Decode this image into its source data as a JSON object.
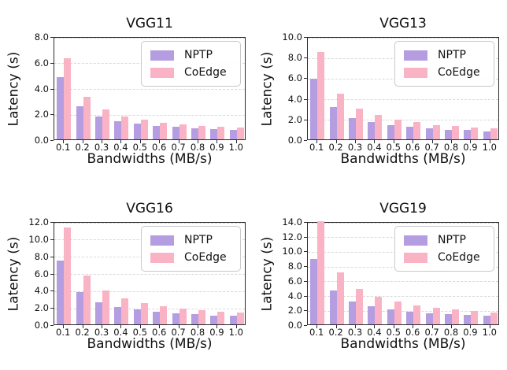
{
  "figure": {
    "background": "#ffffff",
    "text_color": "#111111",
    "grid_color": "#d9d9d9",
    "axis_color": "#2a2a2a"
  },
  "chart_data": [
    {
      "type": "bar",
      "title": "VGG11",
      "xlabel": "Bandwidths (MB/s)",
      "ylabel": "Latency (s)",
      "categories": [
        "0.1",
        "0.2",
        "0.3",
        "0.4",
        "0.5",
        "0.6",
        "0.7",
        "0.8",
        "0.9",
        "1.0"
      ],
      "ylim": [
        0,
        8
      ],
      "yticks": [
        "0.0",
        "2.0",
        "4.0",
        "6.0",
        "8.0"
      ],
      "grid": true,
      "legend_position": "upper right",
      "series": [
        {
          "name": "NPTP",
          "color": "#b49de0",
          "values": [
            4.8,
            2.55,
            1.8,
            1.4,
            1.2,
            1.05,
            0.95,
            0.85,
            0.8,
            0.75
          ]
        },
        {
          "name": "CoEdge",
          "color": "#fab3c4",
          "values": [
            6.3,
            3.3,
            2.3,
            1.8,
            1.5,
            1.3,
            1.15,
            1.05,
            0.95,
            0.9
          ]
        }
      ]
    },
    {
      "type": "bar",
      "title": "VGG13",
      "xlabel": "Bandwidths (MB/s)",
      "ylabel": "Latency (s)",
      "categories": [
        "0.1",
        "0.2",
        "0.3",
        "0.4",
        "0.5",
        "0.6",
        "0.7",
        "0.8",
        "0.9",
        "1.0"
      ],
      "ylim": [
        0,
        10
      ],
      "yticks": [
        "0.0",
        "2.0",
        "4.0",
        "6.0",
        "8.0",
        "10.0"
      ],
      "grid": true,
      "legend_position": "upper right",
      "series": [
        {
          "name": "NPTP",
          "color": "#b49de0",
          "values": [
            5.9,
            3.1,
            2.1,
            1.65,
            1.4,
            1.2,
            1.05,
            0.95,
            0.9,
            0.8
          ]
        },
        {
          "name": "CoEdge",
          "color": "#fab3c4",
          "values": [
            8.5,
            4.4,
            3.0,
            2.35,
            1.9,
            1.65,
            1.4,
            1.3,
            1.15,
            1.1
          ]
        }
      ]
    },
    {
      "type": "bar",
      "title": "VGG16",
      "xlabel": "Bandwidths (MB/s)",
      "ylabel": "Latency (s)",
      "categories": [
        "0.1",
        "0.2",
        "0.3",
        "0.4",
        "0.5",
        "0.6",
        "0.7",
        "0.8",
        "0.9",
        "1.0"
      ],
      "ylim": [
        0,
        12
      ],
      "yticks": [
        "0.0",
        "2.0",
        "4.0",
        "6.0",
        "8.0",
        "10.0",
        "12.0"
      ],
      "grid": true,
      "legend_position": "upper right",
      "series": [
        {
          "name": "NPTP",
          "color": "#b49de0",
          "values": [
            7.4,
            3.8,
            2.6,
            2.05,
            1.7,
            1.45,
            1.3,
            1.2,
            1.05,
            1.0
          ]
        },
        {
          "name": "CoEdge",
          "color": "#fab3c4",
          "values": [
            11.3,
            5.7,
            3.9,
            3.0,
            2.5,
            2.1,
            1.85,
            1.65,
            1.5,
            1.4
          ]
        }
      ]
    },
    {
      "type": "bar",
      "title": "VGG19",
      "xlabel": "Bandwidths (MB/s)",
      "ylabel": "Latency (s)",
      "categories": [
        "0.1",
        "0.2",
        "0.3",
        "0.4",
        "0.5",
        "0.6",
        "0.7",
        "0.8",
        "0.9",
        "1.0"
      ],
      "ylim": [
        0,
        14
      ],
      "yticks": [
        "0.0",
        "2.0",
        "4.0",
        "6.0",
        "8.0",
        "10.0",
        "12.0",
        "14.0"
      ],
      "grid": true,
      "legend_position": "upper right",
      "series": [
        {
          "name": "NPTP",
          "color": "#b49de0",
          "values": [
            8.9,
            4.6,
            3.15,
            2.45,
            2.0,
            1.75,
            1.5,
            1.4,
            1.25,
            1.15
          ]
        },
        {
          "name": "CoEdge",
          "color": "#fab3c4",
          "values": [
            14.0,
            7.1,
            4.85,
            3.75,
            3.05,
            2.55,
            2.25,
            2.0,
            1.8,
            1.65
          ]
        }
      ]
    }
  ]
}
